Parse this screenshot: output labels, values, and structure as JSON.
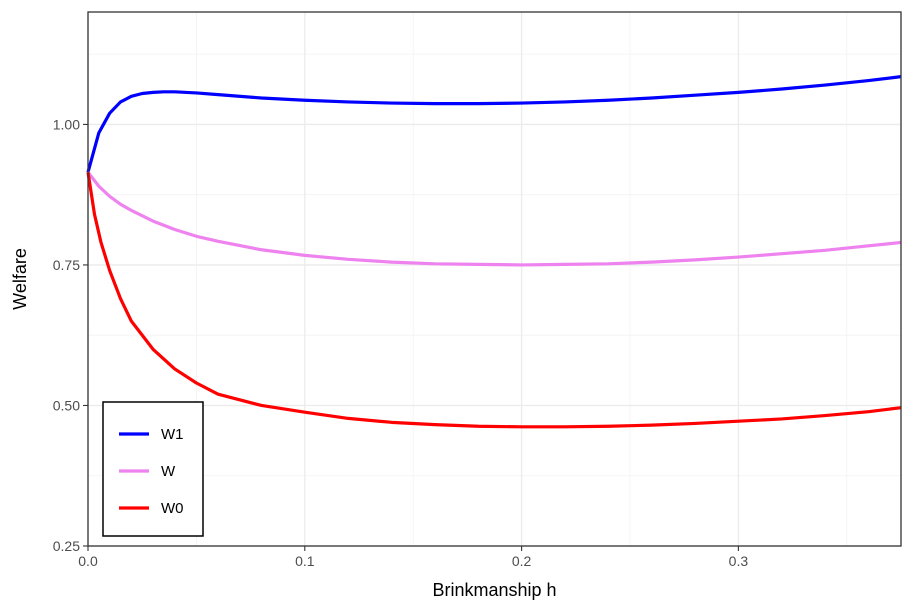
{
  "chart_data": {
    "type": "line",
    "xlabel": "Brinkmanship h",
    "ylabel": "Welfare",
    "xlim": [
      0,
      0.375
    ],
    "ylim": [
      0.25,
      1.2
    ],
    "x_ticks": [
      0.0,
      0.1,
      0.2,
      0.3
    ],
    "x_tick_labels": [
      "0.0",
      "0.1",
      "0.2",
      "0.3"
    ],
    "y_ticks": [
      0.25,
      0.5,
      0.75,
      1.0
    ],
    "y_tick_labels": [
      "0.25",
      "0.50",
      "0.75",
      "1.00"
    ],
    "grid": true,
    "legend_position": "bottom-left",
    "series": [
      {
        "name": "W1",
        "color": "#0000ff",
        "x": [
          0,
          0.005,
          0.01,
          0.015,
          0.02,
          0.025,
          0.03,
          0.035,
          0.04,
          0.05,
          0.06,
          0.08,
          0.1,
          0.12,
          0.14,
          0.16,
          0.18,
          0.2,
          0.22,
          0.24,
          0.26,
          0.28,
          0.3,
          0.32,
          0.34,
          0.36,
          0.375
        ],
        "y": [
          0.915,
          0.985,
          1.02,
          1.04,
          1.05,
          1.055,
          1.057,
          1.058,
          1.058,
          1.056,
          1.053,
          1.047,
          1.043,
          1.04,
          1.038,
          1.037,
          1.037,
          1.038,
          1.04,
          1.043,
          1.047,
          1.052,
          1.057,
          1.063,
          1.07,
          1.078,
          1.085
        ]
      },
      {
        "name": "W",
        "color": "#ee82ee",
        "x": [
          0,
          0.005,
          0.01,
          0.015,
          0.02,
          0.03,
          0.04,
          0.05,
          0.06,
          0.08,
          0.1,
          0.12,
          0.14,
          0.16,
          0.18,
          0.2,
          0.22,
          0.24,
          0.26,
          0.28,
          0.3,
          0.32,
          0.34,
          0.36,
          0.375
        ],
        "y": [
          0.915,
          0.89,
          0.872,
          0.858,
          0.847,
          0.828,
          0.813,
          0.801,
          0.792,
          0.777,
          0.767,
          0.76,
          0.755,
          0.752,
          0.751,
          0.75,
          0.751,
          0.752,
          0.755,
          0.759,
          0.764,
          0.77,
          0.776,
          0.784,
          0.79
        ]
      },
      {
        "name": "W0",
        "color": "#ff0000",
        "x": [
          0,
          0.003,
          0.006,
          0.01,
          0.015,
          0.02,
          0.03,
          0.04,
          0.05,
          0.06,
          0.08,
          0.1,
          0.12,
          0.14,
          0.16,
          0.18,
          0.2,
          0.22,
          0.24,
          0.26,
          0.28,
          0.3,
          0.32,
          0.34,
          0.36,
          0.375
        ],
        "y": [
          0.915,
          0.84,
          0.79,
          0.74,
          0.69,
          0.65,
          0.6,
          0.565,
          0.54,
          0.52,
          0.5,
          0.488,
          0.477,
          0.47,
          0.466,
          0.463,
          0.462,
          0.462,
          0.463,
          0.465,
          0.468,
          0.472,
          0.476,
          0.482,
          0.489,
          0.496
        ]
      }
    ]
  }
}
